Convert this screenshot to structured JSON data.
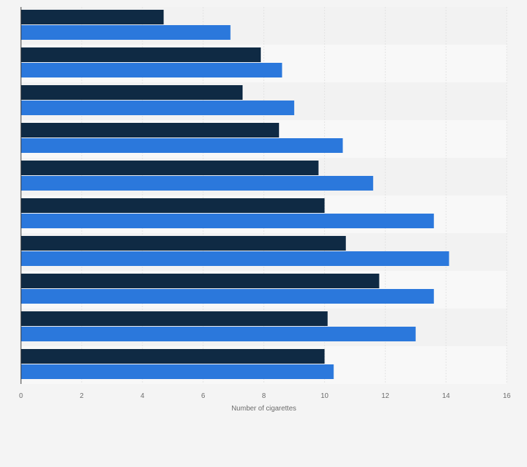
{
  "chart_data": {
    "type": "bar",
    "orientation": "horizontal",
    "categories": [
      "",
      "",
      "",
      "",
      "",
      "",
      "",
      "",
      "",
      ""
    ],
    "series": [
      {
        "values": [
          4.7,
          7.9,
          7.3,
          8.5,
          9.8,
          10.0,
          10.7,
          11.8,
          10.1,
          10.0
        ]
      },
      {
        "values": [
          6.9,
          8.6,
          9.0,
          10.6,
          11.6,
          13.6,
          14.1,
          13.6,
          13.0,
          10.3
        ]
      }
    ],
    "xlabel": "Number of cigarettes",
    "ylabel": "",
    "xlim": [
      0,
      16
    ],
    "xticks": [
      "0",
      "2",
      "4",
      "6",
      "8",
      "10",
      "12",
      "14",
      "16"
    ],
    "grid": "vertical",
    "legend": "none",
    "colors": {
      "series1": "#0f2a44",
      "series2": "#2b78dc",
      "band_a": "#f2f2f2",
      "band_b": "#f8f8f8",
      "grid": "#e2e2e2",
      "axis": "#333333"
    }
  }
}
